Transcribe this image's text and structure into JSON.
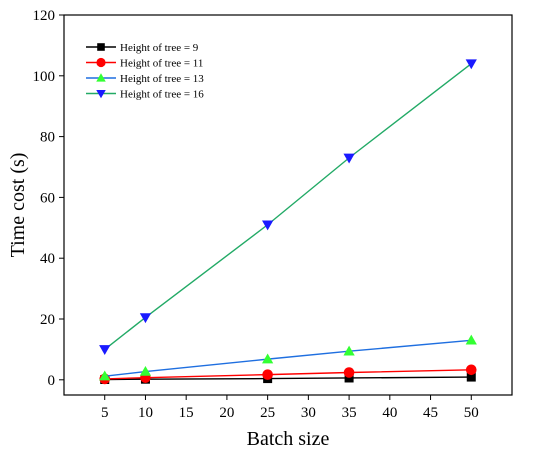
{
  "chart_data": {
    "type": "line",
    "title": "",
    "xlabel": "Batch size",
    "ylabel": "Time cost (s)",
    "xlim": [
      0,
      55
    ],
    "ylim": [
      -5,
      120
    ],
    "xticks": [
      5,
      10,
      15,
      20,
      25,
      30,
      35,
      40,
      45,
      50
    ],
    "yticks": [
      0,
      20,
      40,
      60,
      80,
      100,
      120
    ],
    "grid": false,
    "legend_position": "top-left",
    "x": [
      5,
      10,
      25,
      35,
      50
    ],
    "series": [
      {
        "name": "Height of tree = 9",
        "values": [
          0.1,
          0.2,
          0.4,
          0.6,
          0.9
        ],
        "color": "#000000",
        "marker": "square"
      },
      {
        "name": "Height of tree = 11",
        "values": [
          0.3,
          0.7,
          1.7,
          2.4,
          3.3
        ],
        "color": "#ff0000",
        "marker": "circle"
      },
      {
        "name": "Height of tree = 13",
        "values": [
          1.2,
          2.7,
          6.8,
          9.4,
          13.0
        ],
        "color": "#1f6fe0",
        "marker_color": "#33ff33",
        "marker": "triangle-up"
      },
      {
        "name": "Height of tree = 16",
        "values": [
          10.0,
          20.5,
          51.0,
          73.0,
          104.0
        ],
        "color": "#22aa66",
        "marker_color": "#1a1aff",
        "marker": "triangle-down"
      }
    ]
  }
}
